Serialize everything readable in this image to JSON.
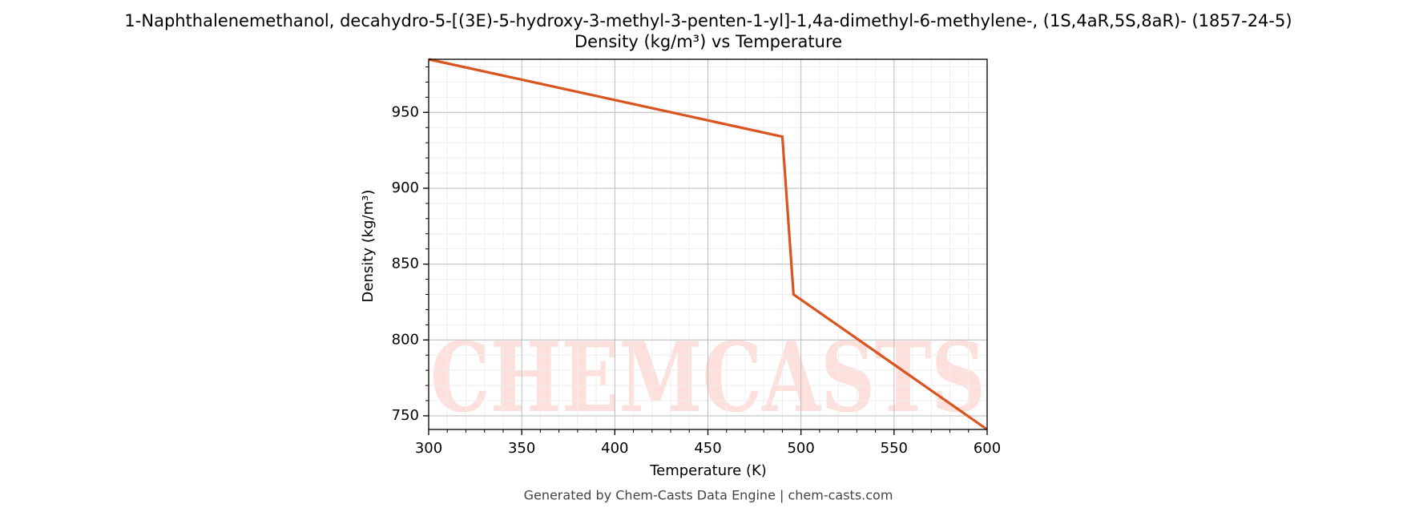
{
  "chart_data": {
    "type": "line",
    "title": "1-Naphthalenemethanol, decahydro-5-[(3E)-5-hydroxy-3-methyl-3-penten-1-yl]-1,4a-dimethyl-6-methylene-, (1S,4aR,5S,8aR)- (1857-24-5)",
    "subtitle": "Density (kg/m³) vs Temperature",
    "x_label": "Temperature (K)",
    "y_label": "Density (kg/m³)",
    "x": [
      300,
      490,
      496,
      600
    ],
    "series": [
      {
        "name": "Density",
        "color": "#d9541e",
        "values": [
          985,
          934,
          830,
          741
        ]
      }
    ],
    "xlim": [
      300,
      600
    ],
    "xticks": [
      300,
      350,
      400,
      450,
      500,
      550,
      600
    ],
    "ylim": [
      741,
      985
    ],
    "yticks": [
      750,
      800,
      850,
      900,
      950
    ],
    "grid": true,
    "minor_grid": true,
    "watermark": "CHEMCASTS",
    "footer": "Generated by Chem-Casts Data Engine | chem-casts.com"
  }
}
